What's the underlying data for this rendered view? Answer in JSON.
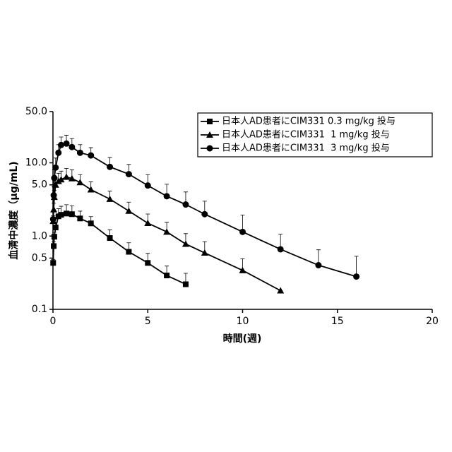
{
  "chart_data": {
    "type": "line",
    "x_label": "時間(週)",
    "y_label": "血清中濃度（μg/mL)",
    "xlim": [
      0,
      20
    ],
    "xticks": [
      0,
      5,
      10,
      15,
      20
    ],
    "ylim": [
      0.1,
      50
    ],
    "y_scale": "log",
    "yticks": [
      0.1,
      0.5,
      {
        "value": 1,
        "label": "1.0"
      },
      {
        "value": 5,
        "label": "5.0"
      },
      {
        "value": 10,
        "label": "10.0"
      },
      {
        "value": 50,
        "label": "50.0"
      }
    ],
    "legend_position": "upper-right",
    "series": [
      {
        "name": "日本人AD患者にCIM331 0.3 mg/kg 投与",
        "color": "#000000",
        "marker": "square",
        "x": [
          0.01,
          0.04,
          0.07,
          0.14,
          0.29,
          0.43,
          0.71,
          1,
          1.43,
          2,
          3,
          4,
          5,
          6,
          7
        ],
        "values": [
          0.43,
          0.73,
          0.98,
          1.31,
          1.86,
          1.95,
          2.03,
          1.99,
          1.74,
          1.49,
          0.94,
          0.61,
          0.43,
          0.29,
          0.22
        ],
        "errors": [
          0.05,
          0.1,
          0.15,
          0.25,
          0.5,
          0.6,
          0.65,
          0.6,
          0.45,
          0.35,
          0.28,
          0.2,
          0.15,
          0.1,
          0.09
        ]
      },
      {
        "name": "日本人AD患者にCIM331  1 mg/kg 投与",
        "color": "#000000",
        "marker": "triangle",
        "x": [
          0.01,
          0.04,
          0.07,
          0.14,
          0.29,
          0.43,
          0.71,
          1,
          1.43,
          2,
          3,
          4,
          5,
          6,
          7,
          8,
          10,
          12
        ],
        "values": [
          1.6,
          2.3,
          3.4,
          5.0,
          5.6,
          5.9,
          6.4,
          6.1,
          5.4,
          4.3,
          3.2,
          2.2,
          1.5,
          1.14,
          0.78,
          0.59,
          0.34,
          0.18
        ],
        "errors": [
          0.3,
          0.5,
          0.8,
          1.2,
          1.6,
          1.8,
          2.0,
          1.9,
          1.5,
          1.2,
          0.9,
          0.7,
          0.5,
          0.4,
          0.3,
          0.25,
          0.15,
          0
        ]
      },
      {
        "name": "日本人AD患者にCIM331  3 mg/kg 投与",
        "color": "#000000",
        "marker": "circle",
        "x": [
          0.01,
          0.04,
          0.07,
          0.14,
          0.29,
          0.43,
          0.71,
          1,
          1.43,
          2,
          3,
          4,
          5,
          6,
          7,
          8,
          10,
          12,
          14,
          16
        ],
        "values": [
          1.7,
          3.6,
          6.2,
          8.6,
          13.7,
          17.5,
          18.3,
          16.4,
          13.7,
          12.6,
          8.8,
          7.0,
          4.9,
          3.5,
          2.7,
          1.99,
          1.14,
          0.66,
          0.4,
          0.28
        ],
        "errors": [
          0.5,
          1.2,
          2,
          3,
          4,
          5,
          5.5,
          5,
          4,
          3.5,
          3,
          2.5,
          2,
          1.6,
          1.3,
          1,
          0.8,
          0.4,
          0.25,
          0.25
        ]
      }
    ]
  }
}
